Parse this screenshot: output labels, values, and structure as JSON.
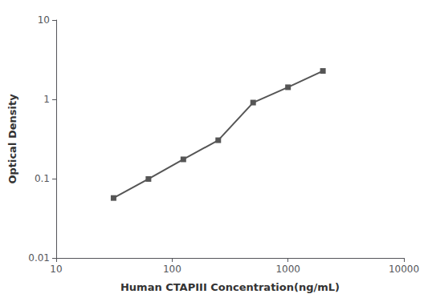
{
  "chart_data": {
    "type": "line",
    "xlabel": "Human CTAPIII Concentration(ng/mL)",
    "ylabel": "Optical Density",
    "x": [
      31.25,
      62.5,
      125,
      250,
      500,
      1000,
      2000
    ],
    "values": [
      0.057,
      0.099,
      0.175,
      0.305,
      0.91,
      1.42,
      2.28
    ],
    "xlim": [
      10,
      10000
    ],
    "ylim": [
      0.01,
      10
    ],
    "xticks": [
      10,
      100,
      1000,
      10000
    ],
    "yticks": [
      0.01,
      0.1,
      1,
      10
    ],
    "log": true,
    "grid": false,
    "color": "#555555",
    "marker": "square"
  }
}
